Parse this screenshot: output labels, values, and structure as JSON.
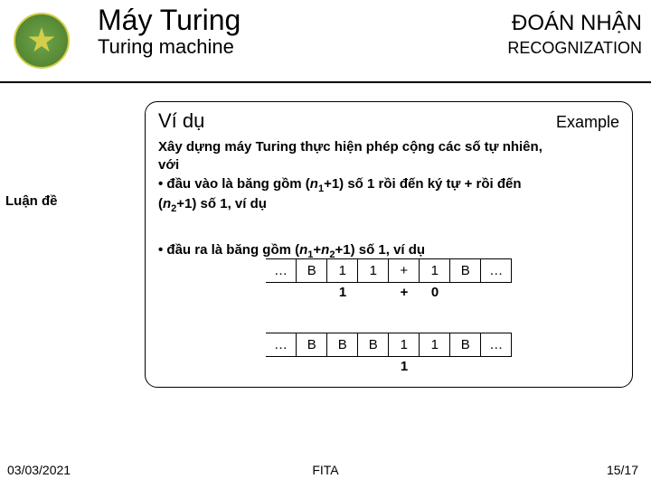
{
  "header": {
    "title_main": "Máy Turing",
    "title_right": "ĐOÁN NHẬN",
    "subtitle_left": "Turing machine",
    "subtitle_right": "RECOGNIZATION"
  },
  "side": {
    "label": "Luận đề"
  },
  "box": {
    "header_left": "Ví dụ",
    "header_right": "Example",
    "para1_l1": "Xây dựng máy Turing thực hiện phép cộng các số tự nhiên,",
    "para1_l2": "với",
    "para1_l3a": "• đầu vào là băng gồm (",
    "para1_l3_n1": "n",
    "para1_l3_s1": "1",
    "para1_l3b": "+1) số 1 rồi đến ký tự + rồi đến",
    "para1_l4a": "(",
    "para1_l4_n2": "n",
    "para1_l4_s2": "2",
    "para1_l4b": "+1) số 1, ví dụ",
    "para2a": "• đầu ra là băng gồm (",
    "para2_n1": "n",
    "para2_s1": "1",
    "para2_b": "+",
    "para2_n2": "n",
    "para2_s2": "2",
    "para2c": "+1) số 1, ví dụ"
  },
  "tape1": {
    "cells": [
      "…",
      "B",
      "1",
      "1",
      "+",
      "1",
      "B",
      "…"
    ],
    "below": [
      "",
      "",
      "1",
      "",
      "+",
      "0",
      "",
      ""
    ]
  },
  "tape2": {
    "cells": [
      "…",
      "B",
      "B",
      "B",
      "1",
      "1",
      "B",
      "…"
    ],
    "below": [
      "",
      "",
      "",
      "",
      "1",
      "",
      "",
      ""
    ]
  },
  "footer": {
    "date": "03/03/2021",
    "center": "FITA",
    "page": "15/17"
  },
  "colors": {
    "text": "#000000",
    "background": "#ffffff",
    "logo_green": "#4a7a2a",
    "logo_gold": "#d4cf4a"
  }
}
